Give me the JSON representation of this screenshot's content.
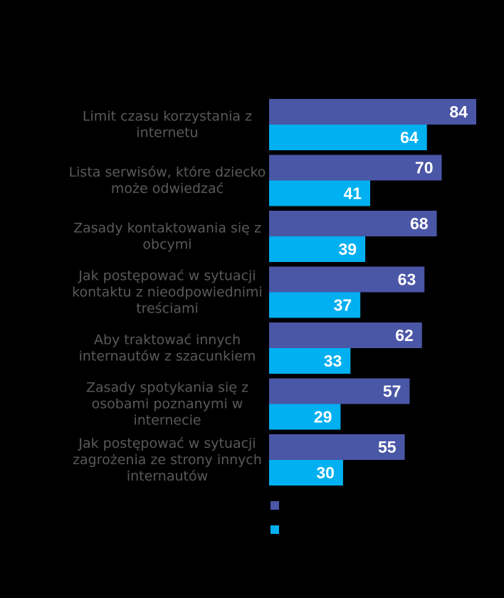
{
  "chart_data": {
    "type": "bar",
    "orientation": "horizontal",
    "categories": [
      "Limit czasu korzystania z internetu",
      "Lista serwisów, które dziecko może odwiedzać",
      "Zasady kontaktowania się z obcymi",
      "Jak postępować w sytuacji kontaktu z nieodpowiednimi treściami",
      "Aby traktować innych internautów z szacunkiem",
      "Zasady spotykania się z osobami poznanymi w internecie",
      "Jak postępować w sytuacji zagrożenia ze strony innych internautów"
    ],
    "category_lines": [
      [
        "Limit czasu korzystania z",
        "internetu"
      ],
      [
        "Lista serwisów, które dziecko",
        "może odwiedzać"
      ],
      [
        "Zasady kontaktowania się z",
        "obcymi"
      ],
      [
        "Jak postępować w sytuacji",
        "kontaktu z nieodpowiednimi",
        "treściami"
      ],
      [
        "Aby traktować innych",
        "internautów z szacunkiem"
      ],
      [
        "Zasady spotykania się z",
        "osobami poznanymi w",
        "internecie"
      ],
      [
        "Jak postępować w sytuacji",
        "zagrożenia ze strony innych",
        "internautów"
      ]
    ],
    "series": [
      {
        "color": "#4a56a6",
        "values": [
          84,
          70,
          68,
          63,
          62,
          57,
          55
        ]
      },
      {
        "color": "#00b0f0",
        "values": [
          64,
          41,
          39,
          37,
          33,
          29,
          30
        ]
      }
    ],
    "xlim": [
      0,
      84
    ],
    "data_labels": true,
    "legend": {
      "position": "bottom",
      "entries": [
        "",
        ""
      ]
    },
    "grid": false,
    "background": "#000000"
  }
}
